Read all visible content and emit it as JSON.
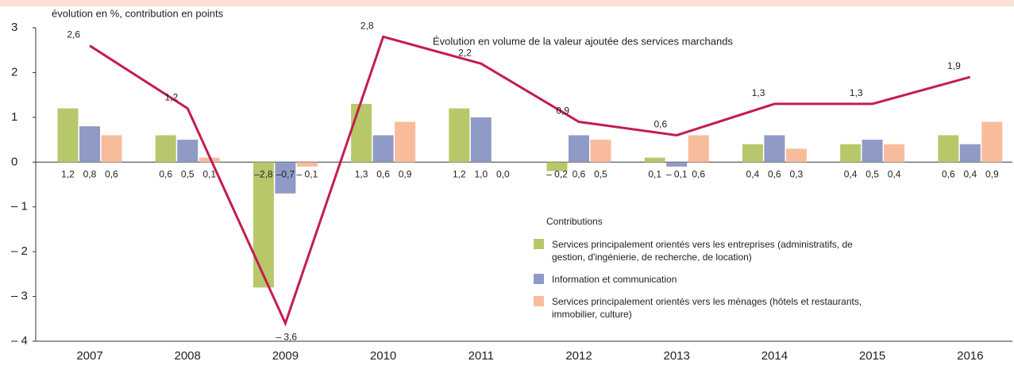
{
  "chart_data": {
    "type": "bar",
    "subtitle": "évolution en %, contribution en points",
    "legend_title": "Contributions",
    "categories": [
      "2007",
      "2008",
      "2009",
      "2010",
      "2011",
      "2012",
      "2013",
      "2014",
      "2015",
      "2016"
    ],
    "series": [
      {
        "name": "Services principalement orientés vers les entreprises (administratifs, de gestion, d'ingénierie, de recherche, de location)",
        "color": "#b7c86b",
        "values": [
          1.2,
          0.6,
          -2.8,
          1.3,
          1.2,
          -0.2,
          0.1,
          0.4,
          0.4,
          0.6
        ],
        "value_labels": [
          "1,2",
          "0,6",
          "–2,8",
          "1,3",
          "1,2",
          "– 0,2",
          "0,1",
          "0,4",
          "0,4",
          "0,6"
        ]
      },
      {
        "name": "Information et communication",
        "color": "#8f9bc6",
        "values": [
          0.8,
          0.5,
          -0.7,
          0.6,
          1.0,
          0.6,
          -0.1,
          0.6,
          0.5,
          0.4
        ],
        "value_labels": [
          "0,8",
          "0,5",
          "–0,7",
          "0,6",
          "1,0",
          "0,6",
          "– 0,1",
          "0,6",
          "0,5",
          "0,4"
        ]
      },
      {
        "name": "Services principalement orientés vers les ménages (hôtels et restaurants, immobilier, culture)",
        "color": "#f8bc9d",
        "values": [
          0.6,
          0.1,
          -0.1,
          0.9,
          0.0,
          0.5,
          0.6,
          0.3,
          0.4,
          0.9
        ],
        "value_labels": [
          "0,6",
          "0,1",
          "– 0,1",
          "0,9",
          "0,0",
          "0,5",
          "0,6",
          "0,3",
          "0,4",
          "0,9"
        ]
      },
      {
        "name": "Évolution en volume de la valeur ajoutée des services marchands",
        "type": "line",
        "color": "#c41d4b",
        "values": [
          2.6,
          1.2,
          -3.6,
          2.8,
          2.2,
          0.9,
          0.6,
          1.3,
          1.3,
          1.9
        ],
        "value_labels": [
          "2,6",
          "1,2",
          "– 3,6",
          "2,8",
          "2,2",
          "0,9",
          "0,6",
          "1,3",
          "1,3",
          "1,9"
        ]
      }
    ],
    "ylim": [
      -4,
      3
    ],
    "yticks": [
      {
        "value": -4,
        "label": "– 4"
      },
      {
        "value": -3,
        "label": "– 3"
      },
      {
        "value": -2,
        "label": "– 2"
      },
      {
        "value": -1,
        "label": "– 1"
      },
      0,
      1,
      2,
      3
    ],
    "grid": false
  }
}
